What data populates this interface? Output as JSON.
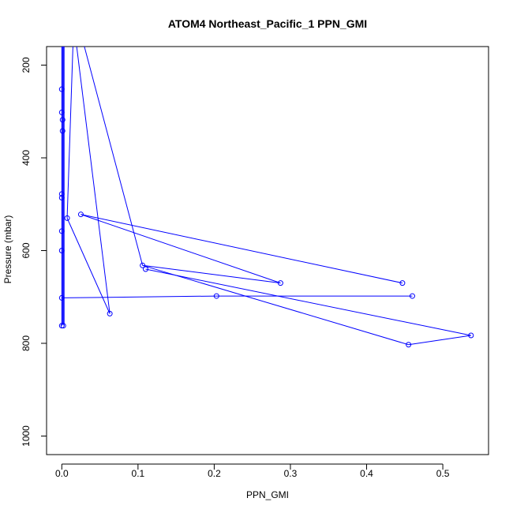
{
  "chart_data": {
    "type": "line",
    "title": "ATOM4 Northeast_Pacific_1 PPN_GMI",
    "xlabel": "PPN_GMI",
    "ylabel": "Pressure (mbar)",
    "xlim": [
      -0.02,
      0.56
    ],
    "ylim": [
      1040,
      160
    ],
    "y_inverted": true,
    "grid": false,
    "series_color": "#0000ff",
    "x_ticks": [
      {
        "value": 0.0,
        "label": "0.0"
      },
      {
        "value": 0.1,
        "label": "0.1"
      },
      {
        "value": 0.2,
        "label": "0.2"
      },
      {
        "value": 0.3,
        "label": "0.3"
      },
      {
        "value": 0.4,
        "label": "0.4"
      },
      {
        "value": 0.5,
        "label": "0.5"
      }
    ],
    "y_ticks": [
      {
        "value": 200,
        "label": "200"
      },
      {
        "value": 400,
        "label": "400"
      },
      {
        "value": 600,
        "label": "600"
      },
      {
        "value": 800,
        "label": "800"
      },
      {
        "value": 1000,
        "label": "1000"
      }
    ],
    "lines": [
      [
        [
          0.0,
          60
        ],
        [
          0.0,
          762
        ]
      ],
      [
        [
          0.001,
          60
        ],
        [
          0.001,
          760
        ]
      ],
      [
        [
          0.002,
          100
        ],
        [
          0.002,
          760
        ]
      ],
      [
        [
          0.003,
          60
        ],
        [
          0.003,
          762
        ]
      ],
      [
        [
          0.015,
          140
        ],
        [
          0.007,
          530
        ]
      ],
      [
        [
          0.028,
          150
        ],
        [
          0.106,
          632
        ]
      ],
      [
        [
          0.0,
          702
        ],
        [
          0.203,
          698
        ]
      ],
      [
        [
          0.203,
          698
        ],
        [
          0.46,
          698
        ]
      ],
      [
        [
          0.007,
          530
        ],
        [
          0.063,
          736
        ]
      ],
      [
        [
          0.063,
          736
        ],
        [
          0.015,
          100
        ]
      ],
      [
        [
          0.025,
          522
        ],
        [
          0.447,
          670
        ]
      ],
      [
        [
          0.025,
          522
        ],
        [
          0.287,
          670
        ]
      ],
      [
        [
          0.287,
          670
        ],
        [
          0.106,
          632
        ]
      ],
      [
        [
          0.11,
          640
        ],
        [
          0.537,
          783
        ]
      ],
      [
        [
          0.537,
          783
        ],
        [
          0.455,
          803
        ]
      ],
      [
        [
          0.455,
          803
        ],
        [
          0.106,
          632
        ]
      ]
    ],
    "points": [
      {
        "x": 0.0,
        "y": 252
      },
      {
        "x": 0.0,
        "y": 302
      },
      {
        "x": 0.001,
        "y": 318
      },
      {
        "x": 0.001,
        "y": 342
      },
      {
        "x": 0.0,
        "y": 478
      },
      {
        "x": 0.0,
        "y": 486
      },
      {
        "x": 0.007,
        "y": 530
      },
      {
        "x": 0.025,
        "y": 522
      },
      {
        "x": 0.0,
        "y": 558
      },
      {
        "x": 0.0,
        "y": 600
      },
      {
        "x": 0.106,
        "y": 632
      },
      {
        "x": 0.11,
        "y": 640
      },
      {
        "x": 0.287,
        "y": 670
      },
      {
        "x": 0.447,
        "y": 670
      },
      {
        "x": 0.203,
        "y": 698
      },
      {
        "x": 0.46,
        "y": 698
      },
      {
        "x": 0.0,
        "y": 702
      },
      {
        "x": 0.063,
        "y": 736
      },
      {
        "x": 0.0,
        "y": 762
      },
      {
        "x": 0.002,
        "y": 762
      },
      {
        "x": 0.537,
        "y": 783
      },
      {
        "x": 0.455,
        "y": 803
      }
    ]
  }
}
